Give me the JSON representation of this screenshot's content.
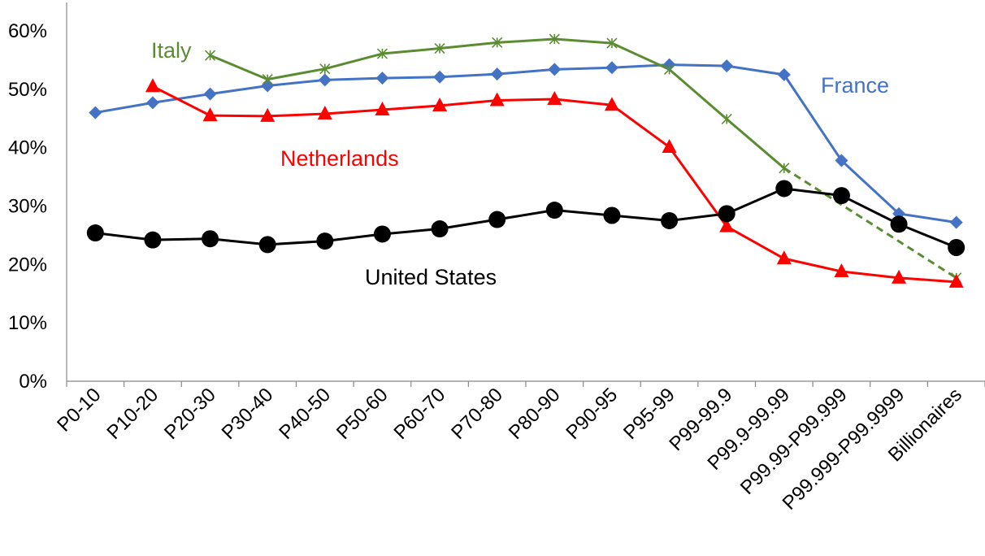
{
  "chart_data": {
    "type": "line",
    "title": "",
    "xlabel": "",
    "ylabel": "",
    "ylim": [
      0,
      0.6
    ],
    "y_ticks": [
      "0%",
      "10%",
      "20%",
      "30%",
      "40%",
      "50%",
      "60%"
    ],
    "grid": false,
    "legend": "inline labels",
    "categories": [
      "P0-10",
      "P10-20",
      "P20-30",
      "P30-40",
      "P40-50",
      "P50-60",
      "P60-70",
      "P70-80",
      "P80-90",
      "P90-95",
      "P95-99",
      "P99-99.9",
      "P99.9-99.99",
      "P99.99-P99.999",
      "P99.999-P99.9999",
      "Billionaires"
    ],
    "series": [
      {
        "name": "France",
        "color": "#4472C4",
        "marker": "diamond",
        "values": [
          0.46,
          0.477,
          0.492,
          0.506,
          0.516,
          0.519,
          0.521,
          0.526,
          0.534,
          0.537,
          0.542,
          0.54,
          0.525,
          0.378,
          0.287,
          0.272
        ]
      },
      {
        "name": "Italy",
        "color": "#5B8C32",
        "marker": "star",
        "dashed_from_index": 12,
        "values": [
          null,
          null,
          0.558,
          0.517,
          0.535,
          0.561,
          0.57,
          0.58,
          0.586,
          0.579,
          0.534,
          0.449,
          0.365,
          null,
          null,
          0.177
        ]
      },
      {
        "name": "Netherlands",
        "color": "#FF0000",
        "marker": "triangle",
        "values": [
          null,
          0.505,
          0.455,
          0.454,
          0.458,
          0.465,
          0.472,
          0.481,
          0.483,
          0.473,
          0.401,
          0.265,
          0.21,
          0.188,
          0.177,
          0.17
        ]
      },
      {
        "name": "United States",
        "color": "#000000",
        "marker": "circle",
        "values": [
          0.254,
          0.242,
          0.244,
          0.234,
          0.24,
          0.252,
          0.261,
          0.277,
          0.293,
          0.284,
          0.275,
          0.287,
          0.33,
          0.318,
          0.269,
          0.229
        ]
      }
    ]
  }
}
